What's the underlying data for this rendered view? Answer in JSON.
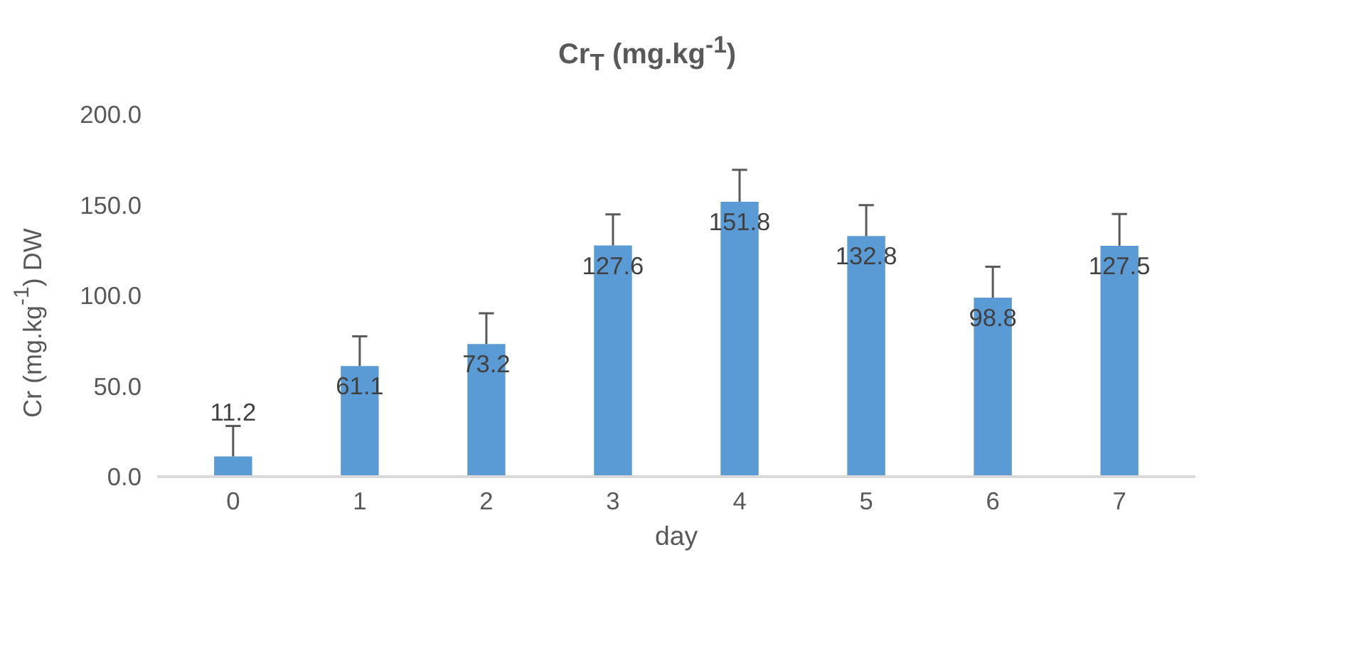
{
  "chart_data": {
    "type": "bar",
    "title": "Cr$_{T}$ (mg.kg$^{-1}$)",
    "xlabel": "day",
    "ylabel": "Cr (mg.kg$^{-1}$) DW",
    "categories": [
      "0",
      "1",
      "2",
      "3",
      "4",
      "5",
      "6",
      "7"
    ],
    "values": [
      11.2,
      61.1,
      73.2,
      127.6,
      151.8,
      132.8,
      98.8,
      127.5
    ],
    "errors": [
      [
        11.2,
        28.0
      ],
      [
        61.1,
        77.5
      ],
      [
        73.2,
        90.2
      ],
      [
        127.6,
        144.8
      ],
      [
        151.8,
        169.4
      ],
      [
        132.8,
        149.9
      ],
      [
        98.8,
        115.9
      ],
      [
        127.5,
        145.0
      ]
    ],
    "color": "#5b9bd5",
    "ylim": [
      0,
      200
    ],
    "yticks": [
      {
        "value": 0,
        "label": "0.0"
      },
      {
        "value": 50,
        "label": "50.0"
      },
      {
        "value": 100,
        "label": "100.0"
      },
      {
        "value": 150,
        "label": "150.0"
      },
      {
        "value": 200,
        "label": "200.0"
      }
    ],
    "data_labels": true,
    "grid": false
  }
}
